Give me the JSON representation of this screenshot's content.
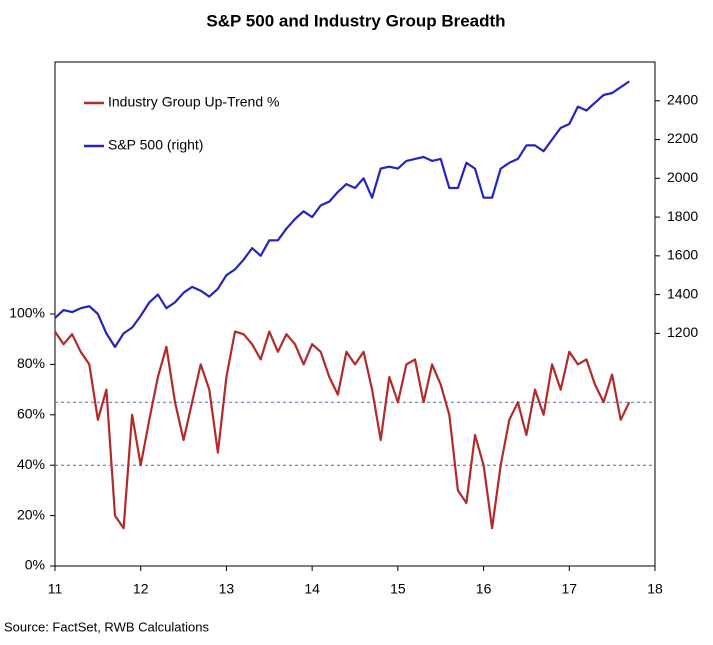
{
  "chart_data": {
    "type": "line",
    "title": "S&P 500 and Industry Group Breadth",
    "source": "Source: FactSet, RWB Calculations",
    "x": [
      11.0,
      11.1,
      11.2,
      11.3,
      11.4,
      11.5,
      11.6,
      11.7,
      11.8,
      11.9,
      12.0,
      12.1,
      12.2,
      12.3,
      12.4,
      12.5,
      12.6,
      12.7,
      12.8,
      12.9,
      13.0,
      13.1,
      13.2,
      13.3,
      13.4,
      13.5,
      13.6,
      13.7,
      13.8,
      13.9,
      14.0,
      14.1,
      14.2,
      14.3,
      14.4,
      14.5,
      14.6,
      14.7,
      14.8,
      14.9,
      15.0,
      15.1,
      15.2,
      15.3,
      15.4,
      15.5,
      15.6,
      15.7,
      15.8,
      15.9,
      16.0,
      16.1,
      16.2,
      16.3,
      16.4,
      16.5,
      16.6,
      16.7,
      16.8,
      16.9,
      17.0,
      17.1,
      17.2,
      17.3,
      17.4,
      17.5,
      17.6,
      17.7
    ],
    "series": [
      {
        "name": "Industry Group Up-Trend %",
        "color": "#b22a2a",
        "axis": "y",
        "values": [
          93,
          88,
          92,
          85,
          80,
          58,
          70,
          20,
          15,
          60,
          40,
          58,
          75,
          87,
          65,
          50,
          65,
          80,
          70,
          45,
          75,
          93,
          92,
          88,
          82,
          93,
          85,
          92,
          88,
          80,
          88,
          85,
          75,
          68,
          85,
          80,
          85,
          70,
          50,
          75,
          65,
          80,
          82,
          65,
          80,
          72,
          60,
          30,
          25,
          52,
          40,
          15,
          40,
          58,
          65,
          52,
          70,
          60,
          80,
          70,
          85,
          80,
          82,
          72,
          65,
          76,
          58,
          65
        ]
      },
      {
        "name": "S&P 500 (right)",
        "color": "#2424c0",
        "axis": "y2",
        "values": [
          1280,
          1320,
          1310,
          1330,
          1340,
          1300,
          1200,
          1130,
          1200,
          1230,
          1290,
          1360,
          1400,
          1330,
          1360,
          1410,
          1440,
          1420,
          1390,
          1430,
          1500,
          1530,
          1580,
          1640,
          1600,
          1680,
          1680,
          1740,
          1790,
          1830,
          1800,
          1860,
          1880,
          1930,
          1970,
          1950,
          2000,
          1900,
          2050,
          2060,
          2050,
          2090,
          2100,
          2110,
          2090,
          2100,
          1950,
          1950,
          2080,
          2050,
          1900,
          1900,
          2050,
          2080,
          2100,
          2170,
          2170,
          2140,
          2200,
          2260,
          2280,
          2370,
          2350,
          2390,
          2430,
          2440,
          2470,
          2500
        ]
      }
    ],
    "xlim": [
      11,
      18
    ],
    "xticks": [
      11,
      12,
      13,
      14,
      15,
      16,
      17,
      18
    ],
    "ylim": [
      0,
      200
    ],
    "yticks": [
      {
        "value": 0,
        "label": "0%"
      },
      {
        "value": 20,
        "label": "20%"
      },
      {
        "value": 40,
        "label": "40%"
      },
      {
        "value": 60,
        "label": "60%"
      },
      {
        "value": 80,
        "label": "80%"
      },
      {
        "value": 100,
        "label": "100%"
      }
    ],
    "y2lim": [
      0,
      2600
    ],
    "y2ticks": [
      1200,
      1400,
      1600,
      1800,
      2000,
      2200,
      2400
    ],
    "reference_lines": [
      65,
      40
    ],
    "reference_color": "#4a6fa5",
    "legend": "upper left"
  }
}
